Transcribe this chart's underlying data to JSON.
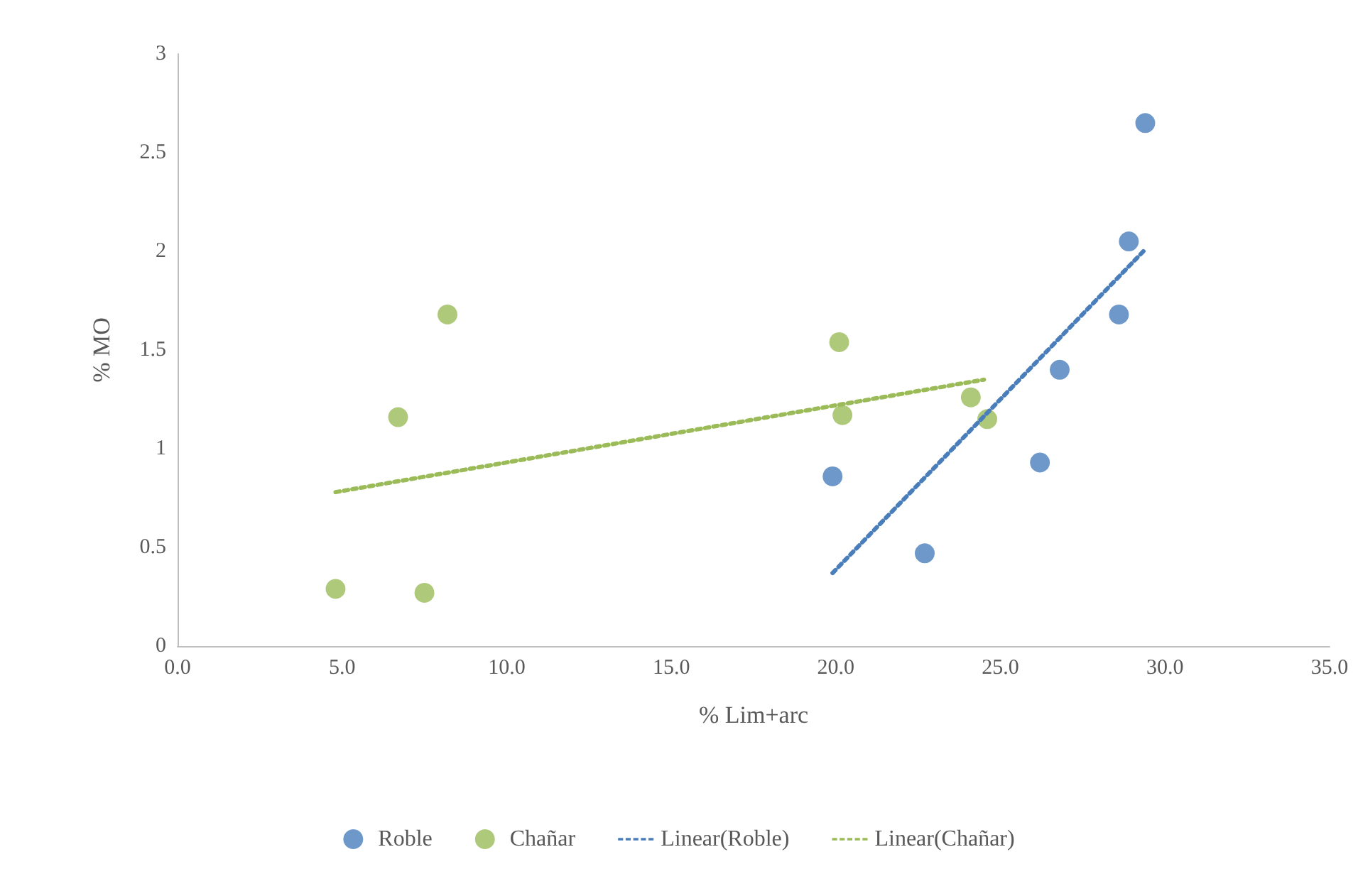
{
  "chart_data": {
    "type": "scatter",
    "xlabel": "% Lim+arc",
    "ylabel": "% MO",
    "xlim": [
      0,
      35
    ],
    "xticks": [
      {
        "value": 0,
        "label": "0.0"
      },
      {
        "value": 5,
        "label": "5.0"
      },
      {
        "value": 10,
        "label": "10.0"
      },
      {
        "value": 15,
        "label": "15.0"
      },
      {
        "value": 20,
        "label": "20.0"
      },
      {
        "value": 25,
        "label": "25.0"
      },
      {
        "value": 30,
        "label": "30.0"
      },
      {
        "value": 35,
        "label": "35.0"
      }
    ],
    "ylim": [
      0,
      3
    ],
    "yticks": [
      0,
      0.5,
      1,
      1.5,
      2,
      2.5,
      3
    ],
    "grid": false,
    "legend": "bottom",
    "marker": "circle",
    "series": [
      {
        "name": "Roble",
        "color": "#4a7ebb",
        "x": [
          22.7,
          19.9,
          26.2,
          26.8,
          28.6,
          28.9,
          29.4
        ],
        "values": [
          0.47,
          0.86,
          0.93,
          1.4,
          1.68,
          2.05,
          2.65
        ]
      },
      {
        "name": "Chañar",
        "color": "#9bbb59",
        "x": [
          4.8,
          6.7,
          7.5,
          8.2,
          20.1,
          20.2,
          24.1,
          24.6
        ],
        "values": [
          0.29,
          1.16,
          0.27,
          1.68,
          1.54,
          1.17,
          1.26,
          1.15
        ]
      },
      {
        "name": "Linear(Roble)",
        "type": "line",
        "line_style": "dotted",
        "marker": "none",
        "color": "#4a7ebb",
        "x": [
          19.9,
          29.4
        ],
        "values": [
          0.37,
          2.01
        ]
      },
      {
        "name": "Linear(Chañar)",
        "type": "line",
        "line_style": "dotted",
        "marker": "none",
        "color": "#9bbb59",
        "x": [
          4.8,
          24.5
        ],
        "values": [
          0.78,
          1.35
        ]
      }
    ]
  }
}
